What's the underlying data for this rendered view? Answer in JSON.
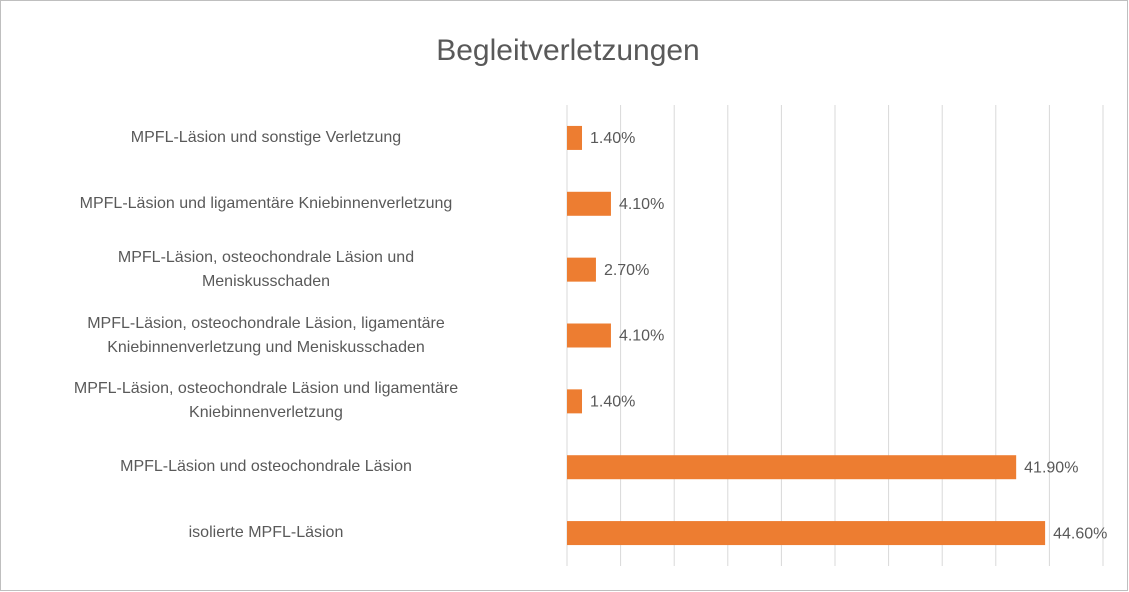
{
  "chart_data": {
    "type": "bar",
    "orientation": "horizontal",
    "title": "Begleitverletzungen",
    "categories": [
      "MPFL-Läsion und sonstige Verletzung",
      "MPFL-Läsion und ligamentäre Kniebinnenverletzung",
      "MPFL-Läsion, osteochondrale Läsion und\nMeniskusschaden",
      "MPFL-Läsion, osteochondrale Läsion, ligamentäre\nKniebinnenverletzung und Meniskusschaden",
      "MPFL-Läsion, osteochondrale Läsion und ligamentäre\nKniebinnenverletzung",
      "MPFL-Läsion und osteochondrale Läsion",
      "isolierte MPFL-Läsion"
    ],
    "values": [
      1.4,
      4.1,
      2.7,
      4.1,
      1.4,
      41.9,
      44.6
    ],
    "value_labels": [
      "1.40%",
      "4.10%",
      "2.70%",
      "4.10%",
      "1.40%",
      "41.90%",
      "44.60%"
    ],
    "color": "#ed7d31",
    "xlim": [
      0,
      50
    ],
    "xticks": [
      0,
      5,
      10,
      15,
      20,
      25,
      30,
      35,
      40,
      45,
      50
    ],
    "grid": true
  }
}
